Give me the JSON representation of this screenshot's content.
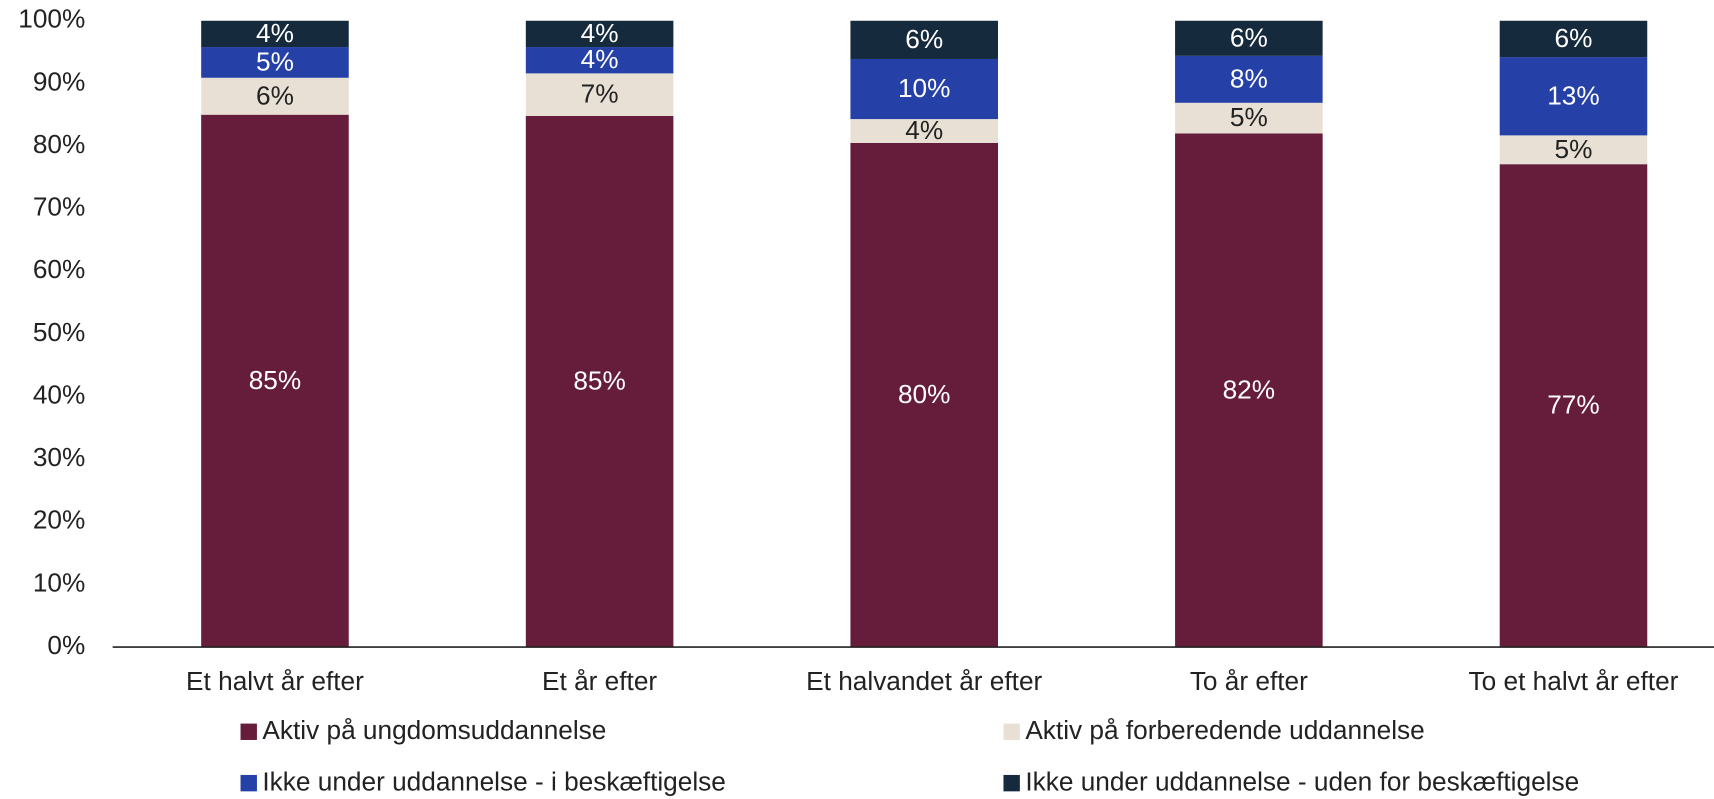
{
  "chart_data": {
    "type": "stacked_bar",
    "categories": [
      "Et halvt år efter",
      "Et år efter",
      "Et halvandet år efter",
      "To år efter",
      "To et halvt år efter"
    ],
    "series": [
      {
        "name": "Aktiv på ungdomsuddannelse",
        "color": "#651d3b",
        "values": [
          85.0,
          84.8,
          80.5,
          82.0,
          77.1
        ],
        "value_labels": [
          "85%",
          "85%",
          "80%",
          "82%",
          "77%"
        ]
      },
      {
        "name": "Aktiv på forberedende uddannelse",
        "color": "#e8e0d5",
        "values": [
          5.9,
          6.8,
          3.8,
          4.9,
          4.6
        ],
        "value_labels": [
          "6%",
          "7%",
          "4%",
          "5%",
          "5%"
        ]
      },
      {
        "name": "Ikke under uddannelse - i beskæftigelse",
        "color": "#2540a6",
        "values": [
          4.9,
          4.2,
          9.6,
          7.5,
          12.5
        ],
        "value_labels": [
          "5%",
          "4%",
          "10%",
          "8%",
          "13%"
        ]
      },
      {
        "name": "Ikke under uddannelse - uden for beskæftigelse",
        "color": "#152a3c",
        "values": [
          4.2,
          4.2,
          6.1,
          5.6,
          5.8
        ],
        "value_labels": [
          "4%",
          "4%",
          "6%",
          "6%",
          "6%"
        ]
      }
    ],
    "ylim": [
      0,
      100
    ],
    "yticks": [
      {
        "value": 0,
        "label": "0%"
      },
      {
        "value": 10,
        "label": "10%"
      },
      {
        "value": 20,
        "label": "20%"
      },
      {
        "value": 30,
        "label": "30%"
      },
      {
        "value": 40,
        "label": "40%"
      },
      {
        "value": 50,
        "label": "50%"
      },
      {
        "value": 60,
        "label": "60%"
      },
      {
        "value": 70,
        "label": "70%"
      },
      {
        "value": 80,
        "label": "80%"
      },
      {
        "value": 90,
        "label": "90%"
      },
      {
        "value": 100,
        "label": "100%"
      }
    ],
    "legend": "bottom"
  }
}
